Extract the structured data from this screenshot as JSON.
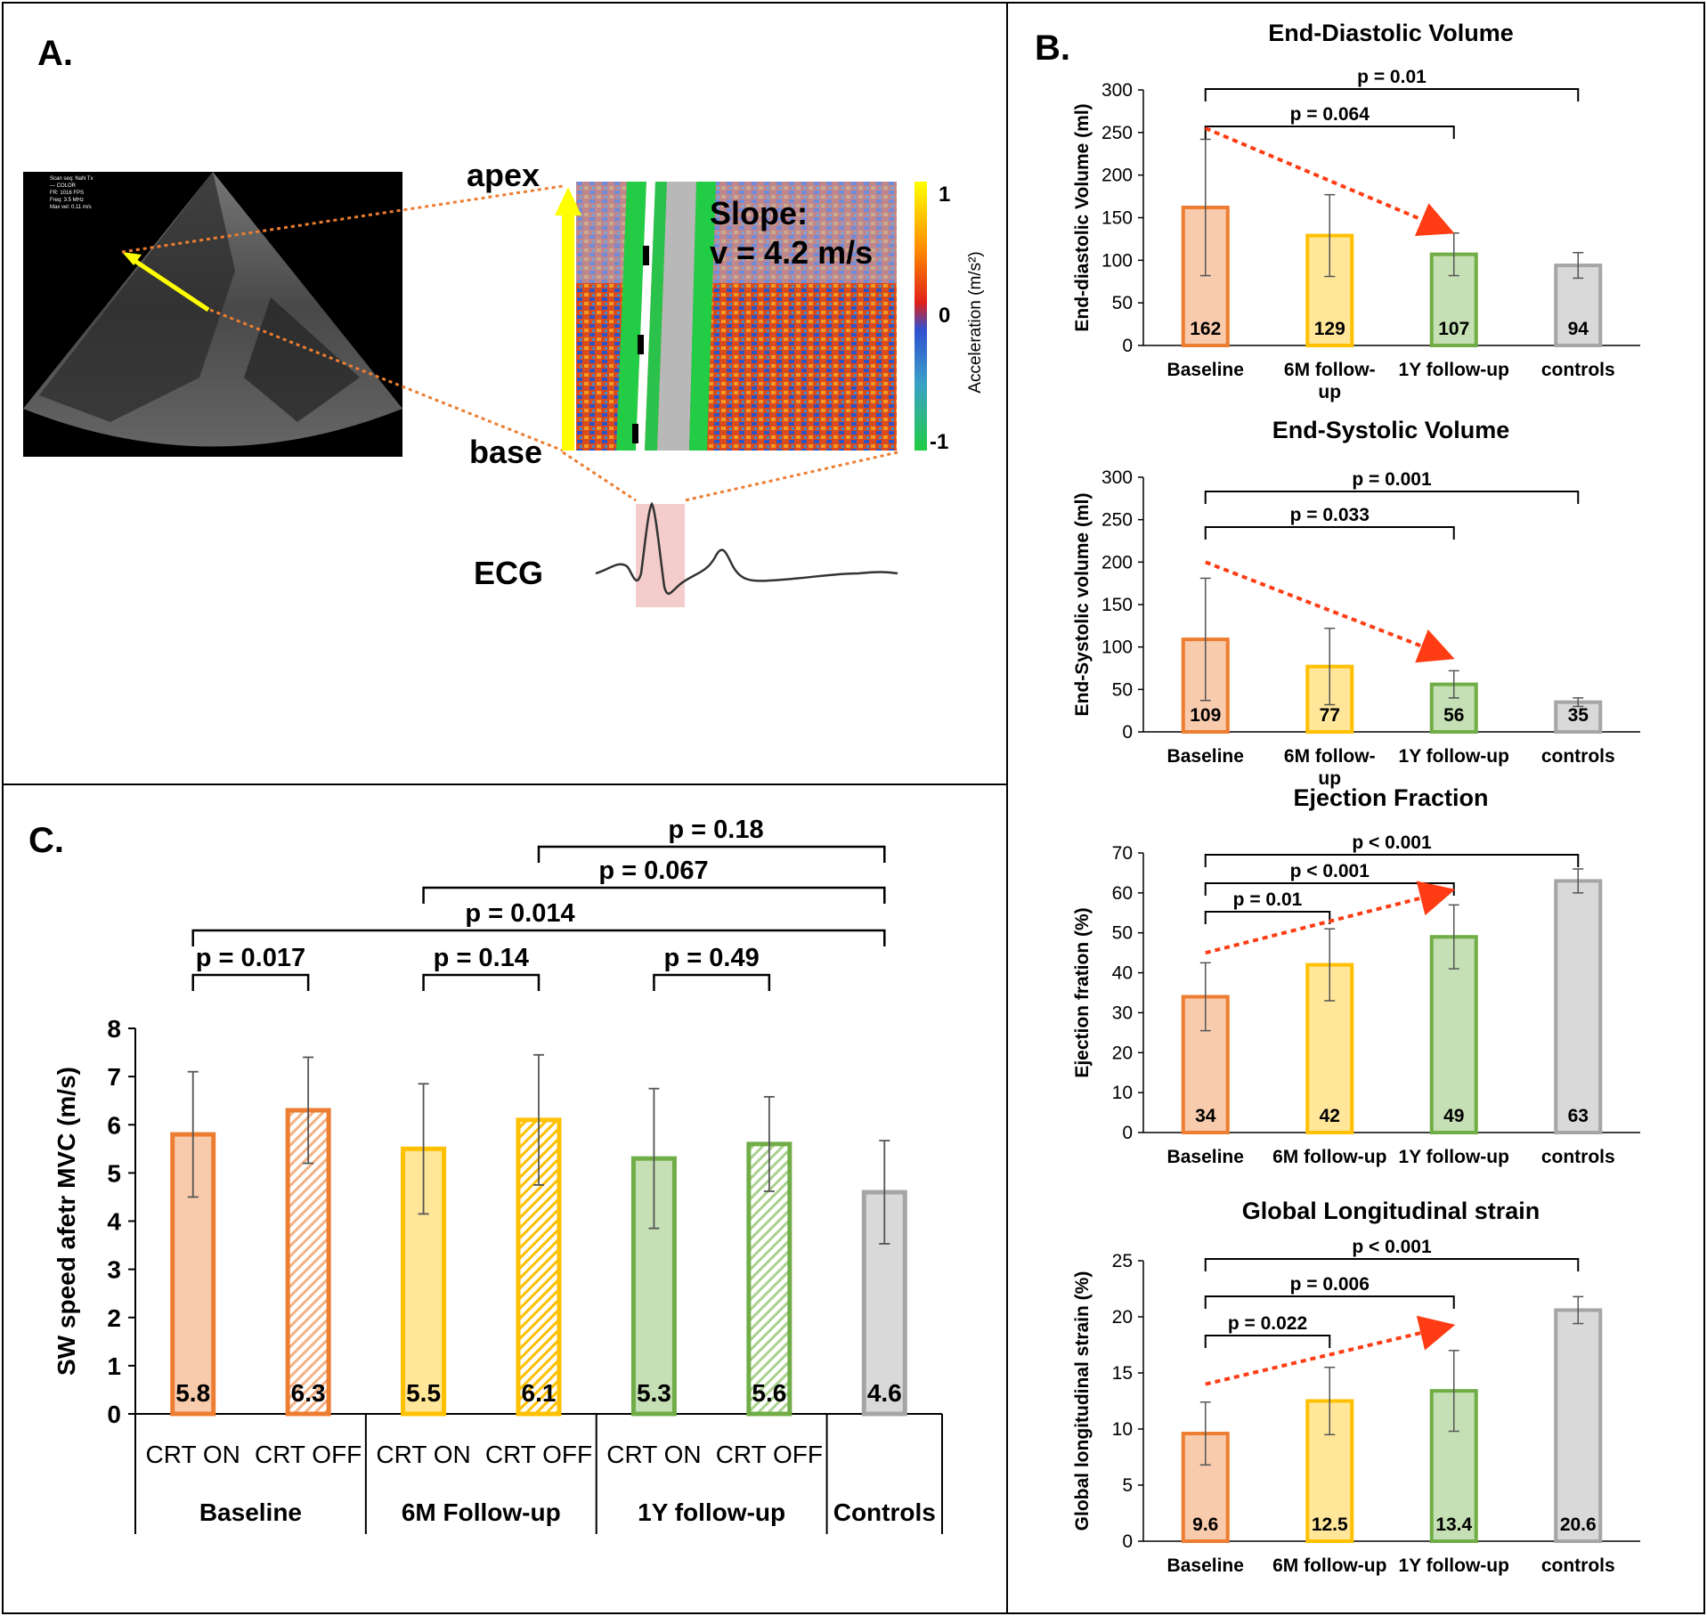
{
  "panelA": {
    "label": "A.",
    "echo_text": [
      "Scan seq: NaN Tx",
      "— COLOR",
      "FR: 1016 FPS",
      "Freq: 3.5 MHz",
      "Max vel: 0.11 m/s"
    ],
    "apex_label": "apex",
    "base_label": "base",
    "slope_line1": "Slope:",
    "slope_line2": "v = 4.2 m/s",
    "colorbar_label": "Acceleration (m/s²)",
    "colorbar_ticks": [
      "1",
      "0",
      "-1"
    ],
    "ecg_label": "ECG"
  },
  "panelB_label": "B.",
  "panelC_label": "C.",
  "chart_data": [
    {
      "id": "edv",
      "type": "bar",
      "title": "End-Diastolic Volume",
      "ylabel": "End-diastolic Volume (ml)",
      "ylim": [
        0,
        300
      ],
      "yticks": [
        0,
        50,
        100,
        150,
        200,
        250,
        300
      ],
      "categories": [
        [
          "Baseline"
        ],
        [
          "6M follow-",
          "up"
        ],
        [
          "1Y follow-up"
        ],
        [
          "controls"
        ]
      ],
      "values": [
        162,
        129,
        107,
        94
      ],
      "value_labels": [
        "162",
        "129",
        "107",
        "94"
      ],
      "errors": [
        80,
        48,
        25,
        15
      ],
      "colors": [
        "#ed7d31",
        "#ffc000",
        "#70ad47",
        "#a5a5a5"
      ],
      "fills": [
        "#f8cbad",
        "#ffe699",
        "#c5e0b4",
        "#d9d9d9"
      ],
      "brackets": [
        {
          "from": 0,
          "to": 3,
          "label": "p = 0.01"
        },
        {
          "from": 0,
          "to": 2,
          "label": "p = 0.064"
        }
      ],
      "trend_arrow": {
        "from_value": 255,
        "to_value": 138
      }
    },
    {
      "id": "esv",
      "type": "bar",
      "title": "End-Systolic Volume",
      "ylabel": "End-Systolic volume (ml)",
      "ylim": [
        0,
        300
      ],
      "yticks": [
        0,
        50,
        100,
        150,
        200,
        250,
        300
      ],
      "categories": [
        [
          "Baseline"
        ],
        [
          "6M follow-",
          "up"
        ],
        [
          "1Y follow-up"
        ],
        [
          "controls"
        ]
      ],
      "values": [
        109,
        77,
        56,
        35
      ],
      "value_labels": [
        "109",
        "77",
        "56",
        "35"
      ],
      "errors": [
        72,
        45,
        16,
        5
      ],
      "colors": [
        "#ed7d31",
        "#ffc000",
        "#70ad47",
        "#a5a5a5"
      ],
      "fills": [
        "#f8cbad",
        "#ffe699",
        "#c5e0b4",
        "#d9d9d9"
      ],
      "brackets": [
        {
          "from": 0,
          "to": 3,
          "label": "p = 0.001"
        },
        {
          "from": 0,
          "to": 2,
          "label": "p = 0.033"
        }
      ],
      "trend_arrow": {
        "from_value": 200,
        "to_value": 92
      }
    },
    {
      "id": "ef",
      "type": "bar",
      "title": "Ejection Fraction",
      "ylabel": "Ejection fration (%)",
      "ylim": [
        0,
        70
      ],
      "yticks": [
        0,
        10,
        20,
        30,
        40,
        50,
        60,
        70
      ],
      "categories": [
        [
          "Baseline"
        ],
        [
          "6M follow-up"
        ],
        [
          "1Y follow-up"
        ],
        [
          "controls"
        ]
      ],
      "values": [
        34,
        42,
        49,
        63
      ],
      "value_labels": [
        "34",
        "42",
        "49",
        "63"
      ],
      "errors": [
        8.5,
        9,
        8,
        3
      ],
      "colors": [
        "#ed7d31",
        "#ffc000",
        "#70ad47",
        "#a5a5a5"
      ],
      "fills": [
        "#f8cbad",
        "#ffe699",
        "#c5e0b4",
        "#d9d9d9"
      ],
      "brackets": [
        {
          "from": 0,
          "to": 3,
          "label": "p < 0.001"
        },
        {
          "from": 0,
          "to": 2,
          "label": "p < 0.001"
        },
        {
          "from": 0,
          "to": 1,
          "label": "p = 0.01"
        }
      ],
      "trend_arrow": {
        "from_value": 45,
        "to_value": 60
      }
    },
    {
      "id": "gls",
      "type": "bar",
      "title": "Global Longitudinal strain",
      "ylabel": "Global longitudinal strain (%)",
      "ylim": [
        0,
        25
      ],
      "yticks": [
        0,
        5,
        10,
        15,
        20,
        25
      ],
      "categories": [
        [
          "Baseline"
        ],
        [
          "6M follow-up"
        ],
        [
          "1Y follow-up"
        ],
        [
          "controls"
        ]
      ],
      "values": [
        9.6,
        12.5,
        13.4,
        20.6
      ],
      "value_labels": [
        "9.6",
        "12.5",
        "13.4",
        "20.6"
      ],
      "errors": [
        2.8,
        3,
        3.6,
        1.2
      ],
      "colors": [
        "#ed7d31",
        "#ffc000",
        "#70ad47",
        "#a5a5a5"
      ],
      "fills": [
        "#f8cbad",
        "#ffe699",
        "#c5e0b4",
        "#d9d9d9"
      ],
      "brackets": [
        {
          "from": 0,
          "to": 3,
          "label": "p < 0.001"
        },
        {
          "from": 0,
          "to": 2,
          "label": "p = 0.006"
        },
        {
          "from": 0,
          "to": 1,
          "label": "p = 0.022"
        }
      ],
      "trend_arrow": {
        "from_value": 14,
        "to_value": 19
      }
    },
    {
      "id": "sw",
      "type": "bar",
      "title": "",
      "ylabel": "SW speed afetr MVC (m/s)",
      "ylim": [
        0,
        8
      ],
      "yticks": [
        0,
        1,
        2,
        3,
        4,
        5,
        6,
        7,
        8
      ],
      "categories": [
        "CRT ON",
        "CRT OFF",
        "CRT ON",
        "CRT OFF",
        "CRT ON",
        "CRT OFF",
        ""
      ],
      "groups": [
        {
          "label": "Baseline",
          "span": 2
        },
        {
          "label": "6M Follow-up",
          "span": 2
        },
        {
          "label": "1Y follow-up",
          "span": 2
        },
        {
          "label": "Controls",
          "span": 1
        }
      ],
      "values": [
        5.8,
        6.3,
        5.5,
        6.1,
        5.3,
        5.6,
        4.6
      ],
      "value_labels": [
        "5.8",
        "6.3",
        "5.5",
        "6.1",
        "5.3",
        "5.6",
        "4.6"
      ],
      "errors": [
        1.3,
        1.1,
        1.35,
        1.35,
        1.45,
        0.98,
        1.07
      ],
      "colors": [
        "#ed7d31",
        "#ed7d31",
        "#ffc000",
        "#ffc000",
        "#70ad47",
        "#70ad47",
        "#a5a5a5"
      ],
      "fills": [
        "#f8cbad",
        "#fbe5d6",
        "#ffe699",
        "#fff2cc",
        "#c5e0b4",
        "#e2f0d9",
        "#d9d9d9"
      ],
      "hatched": [
        false,
        true,
        false,
        true,
        false,
        true,
        false
      ],
      "brackets": [
        {
          "from": 0,
          "to": 1,
          "label": "p = 0.017"
        },
        {
          "from": 2,
          "to": 3,
          "label": "p = 0.14"
        },
        {
          "from": 4,
          "to": 5,
          "label": "p = 0.49"
        },
        {
          "from": 0,
          "to": 6,
          "label": "p = 0.014"
        },
        {
          "from": 2,
          "to": 6,
          "label": "p = 0.067"
        },
        {
          "from": 3,
          "to": 6,
          "label": "p = 0.18"
        }
      ]
    }
  ]
}
